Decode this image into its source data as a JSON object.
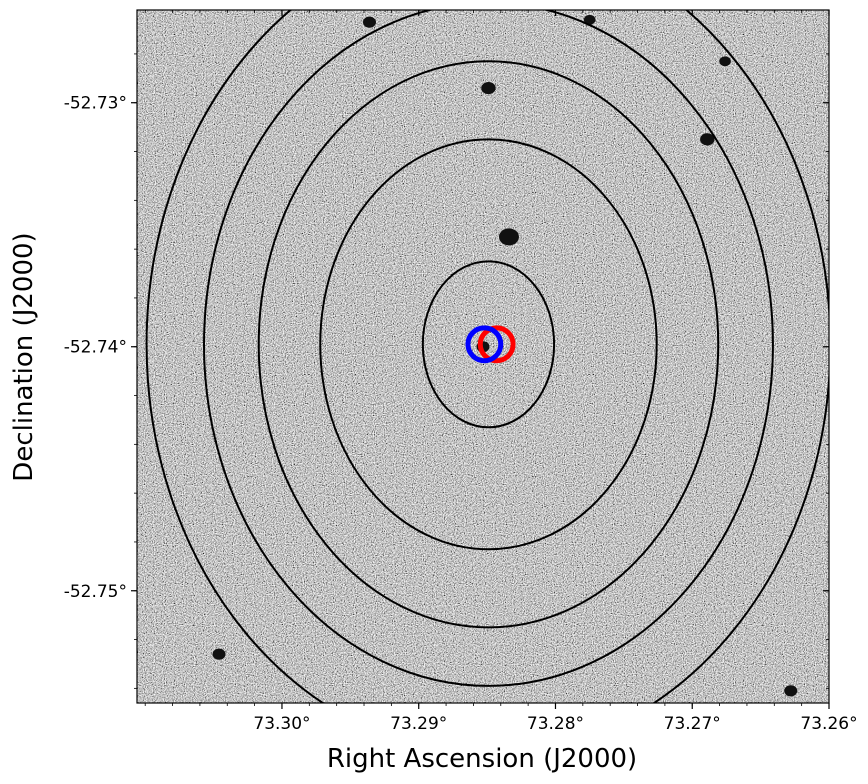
{
  "chart_data": {
    "type": "image",
    "xlabel": "Right Ascension (J2000)",
    "ylabel": "Declination (J2000)",
    "x_axis_inverted": true,
    "xlim": [
      73.3106,
      73.26
    ],
    "ylim": [
      -52.7262,
      -52.7546
    ],
    "x_ticks": [
      {
        "value": 73.3,
        "label": "73.30°"
      },
      {
        "value": 73.29,
        "label": "73.29°"
      },
      {
        "value": 73.28,
        "label": "73.28°"
      },
      {
        "value": 73.27,
        "label": "73.27°"
      },
      {
        "value": 73.26,
        "label": "73.26°"
      }
    ],
    "y_ticks": [
      {
        "value": -52.75,
        "label": "-52.75°"
      },
      {
        "value": -52.74,
        "label": "-52.74°"
      },
      {
        "value": -52.73,
        "label": "-52.73°"
      }
    ],
    "background": "grayscale noise image",
    "contour_color": "#000000",
    "contours": [
      {
        "center_ra": 73.2849,
        "center_dec": -52.7399,
        "ra_semi": 0.0048,
        "dec_semi": 0.0034
      },
      {
        "center_ra": 73.2849,
        "center_dec": -52.7399,
        "ra_semi": 0.0123,
        "dec_semi": 0.0084
      },
      {
        "center_ra": 73.2849,
        "center_dec": -52.7399,
        "ra_semi": 0.0168,
        "dec_semi": 0.0116
      },
      {
        "center_ra": 73.2849,
        "center_dec": -52.7399,
        "ra_semi": 0.0208,
        "dec_semi": 0.014
      },
      {
        "center_ra": 73.2849,
        "center_dec": -52.7399,
        "ra_semi": 0.025,
        "dec_semi": 0.0168
      }
    ],
    "markers": [
      {
        "name": "red circle",
        "color": "#ff0000",
        "ra": 73.2843,
        "dec": -52.7399,
        "radius_deg": 0.0012
      },
      {
        "name": "blue circle",
        "color": "#0000ff",
        "ra": 73.2852,
        "dec": -52.7399,
        "radius_deg": 0.0012
      }
    ],
    "point_sources": [
      {
        "ra": 73.2834,
        "dec": -52.7355,
        "size": 1.0
      },
      {
        "ra": 73.2849,
        "dec": -52.7294,
        "size": 0.6
      },
      {
        "ra": 73.2689,
        "dec": -52.7315,
        "size": 0.6
      },
      {
        "ra": 73.3046,
        "dec": -52.7526,
        "size": 0.5
      },
      {
        "ra": 73.2936,
        "dec": -52.7267,
        "size": 0.5
      },
      {
        "ra": 73.2775,
        "dec": -52.7266,
        "size": 0.4
      },
      {
        "ra": 73.2676,
        "dec": -52.7283,
        "size": 0.4
      },
      {
        "ra": 73.2628,
        "dec": -52.7541,
        "size": 0.5
      },
      {
        "ra": 73.2853,
        "dec": -52.74,
        "size": 0.5
      }
    ]
  }
}
